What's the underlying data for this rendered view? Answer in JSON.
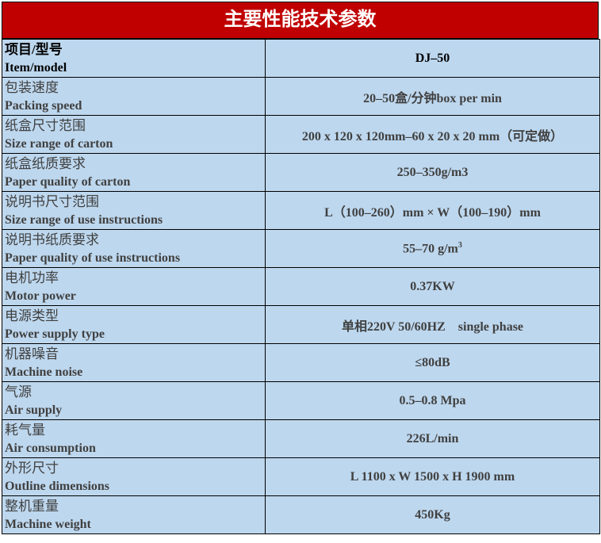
{
  "title": "主要性能技术参数",
  "header": {
    "cn": "项目/型号",
    "en": "Item/model",
    "value": "DJ–50",
    "value_color": "#e00000"
  },
  "rows": [
    {
      "cn": "包装速度",
      "en": "Packing speed",
      "value": "20–50盒/分钟box per min"
    },
    {
      "cn": "纸盒尺寸范围",
      "en": "Size range of carton",
      "value": "200 x 120 x 120mm–60 x 20 x 20 mm（可定做）"
    },
    {
      "cn": "纸盒纸质要求",
      "en": "Paper quality of carton",
      "value": "250–350g/m3"
    },
    {
      "cn": "说明书尺寸范围",
      "en": "Size range of use instructions",
      "value": "L（100–260）mm × W（100–190）mm"
    },
    {
      "cn": "说明书纸质要求",
      "en": "Paper quality of use instructions",
      "value": "55–70 g/m",
      "sup": "3"
    },
    {
      "cn": "电机功率",
      "en": "Motor power",
      "value": "0.37KW"
    },
    {
      "cn": "电源类型",
      "en": "Power supply type",
      "value": "单相220V 50/60HZ　single phase"
    },
    {
      "cn": "机器噪音",
      "en": "Machine noise",
      "value": "≤80dB"
    },
    {
      "cn": "气源",
      "en": "Air supply",
      "value": "0.5–0.8 Mpa"
    },
    {
      "cn": "耗气量",
      "en": "Air consumption",
      "value": "226L/min"
    },
    {
      "cn": "外形尺寸",
      "en": "Outline dimensions",
      "value": "L 1100 x  W 1500 x  H 1900 mm"
    },
    {
      "cn": "整机重量",
      "en": "Machine weight",
      "value": "450Kg"
    }
  ]
}
